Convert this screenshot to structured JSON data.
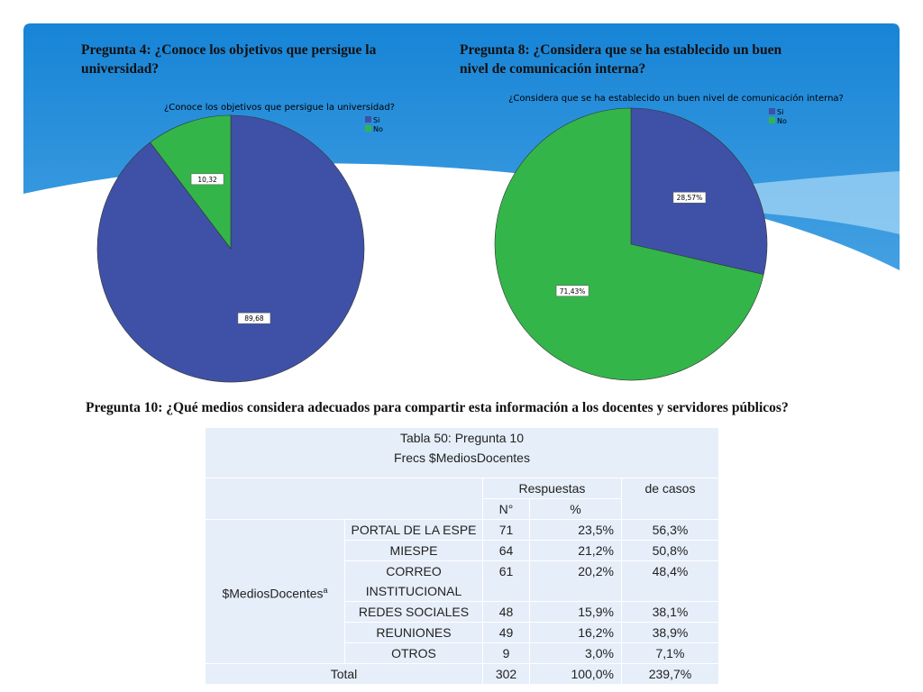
{
  "slide": {
    "question4": "Pregunta 4: ¿Conoce los objetivos que persigue la universidad?",
    "question8": "Pregunta 8: ¿Considera que se ha establecido un buen nivel de comunicación interna?",
    "question10": "Pregunta 10: ¿Qué medios considera adecuados para compartir esta información a los docentes y servidores públicos?"
  },
  "chart_data": [
    {
      "type": "pie",
      "title": "¿Conoce los objetivos que persigue la universidad?",
      "categories": [
        "Si",
        "No"
      ],
      "values": [
        89.68,
        10.32
      ],
      "value_labels": [
        "89,68",
        "10,32"
      ],
      "colors": [
        "#3f51a6",
        "#33b54a"
      ]
    },
    {
      "type": "pie",
      "title": "¿Considera que se ha establecido un buen nivel de comunicación interna?",
      "categories": [
        "Si",
        "No"
      ],
      "values": [
        28.57,
        71.43
      ],
      "value_labels": [
        "28,57%",
        "71,43%"
      ],
      "colors": [
        "#3f51a6",
        "#33b54a"
      ]
    }
  ],
  "table": {
    "title": "Tabla 50: Pregunta 10",
    "subtitle": "Frecs $MediosDocentes",
    "headers": [
      "Respuestas",
      "de casos"
    ],
    "subheaders": [
      "N°",
      "%"
    ],
    "group": "$MediosDocentes",
    "group_note": "a",
    "rows": [
      [
        "PORTAL DE LA ESPE",
        71,
        "23,5%",
        "56,3%"
      ],
      [
        "MIESPE",
        64,
        "21,2%",
        "50,8%"
      ],
      [
        "CORREO INSTITUCIONAL",
        61,
        "20,2%",
        "48,4%"
      ],
      [
        "REDES SOCIALES",
        48,
        "15,9%",
        "38,1%"
      ],
      [
        "REUNIONES",
        49,
        "16,2%",
        "38,9%"
      ],
      [
        "OTROS",
        9,
        "3,0%",
        "7,1%"
      ]
    ],
    "total": [
      "Total",
      302,
      "100,0%",
      "239,7%"
    ]
  }
}
